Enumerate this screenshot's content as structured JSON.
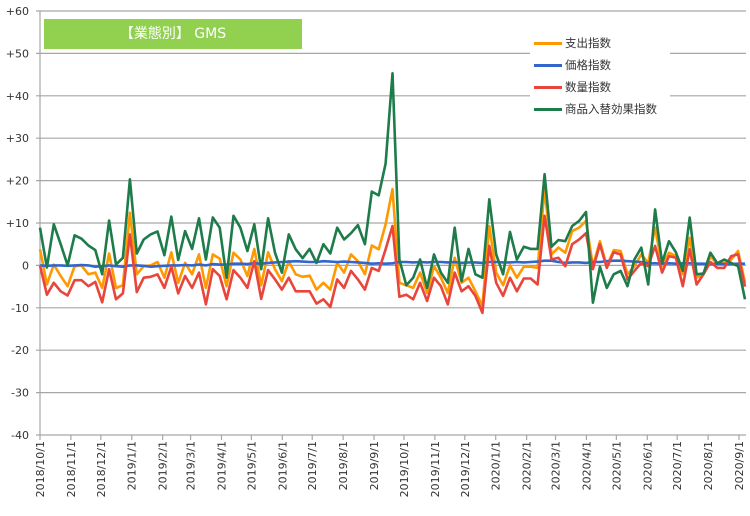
{
  "chart_data": {
    "type": "line",
    "title": "【業態別】 GMS",
    "xlabel": "",
    "ylabel": "",
    "ylim": [
      -40,
      60
    ],
    "y_ticks": [
      {
        "value": 60,
        "label": "+60"
      },
      {
        "value": 50,
        "label": "+50"
      },
      {
        "value": 40,
        "label": "+40"
      },
      {
        "value": 30,
        "label": "+30"
      },
      {
        "value": 20,
        "label": "+20"
      },
      {
        "value": 10,
        "label": "+10"
      },
      {
        "value": 0,
        "label": "0"
      },
      {
        "value": -10,
        "label": "-10"
      },
      {
        "value": -20,
        "label": "-20"
      },
      {
        "value": -30,
        "label": "-30"
      },
      {
        "value": -40,
        "label": "-40"
      }
    ],
    "x_tick_labels": [
      "2018/10/1",
      "2018/11/1",
      "2018/12/1",
      "2019/1/1",
      "2019/2/1",
      "2019/3/1",
      "2019/4/1",
      "2019/5/1",
      "2019/6/1",
      "2019/7/1",
      "2019/8/1",
      "2019/9/1",
      "2019/10/1",
      "2019/11/1",
      "2019/12/1",
      "2020/1/1",
      "2020/2/1",
      "2020/3/1",
      "2020/4/1",
      "2020/5/1",
      "2020/6/1",
      "2020/7/1",
      "2020/8/1",
      "2020/9/1"
    ],
    "x_interval": "weekly",
    "grid": true,
    "legend_position": "top-right",
    "series": [
      {
        "name": "支出指数",
        "color": "#FF9900",
        "values": [
          3.8,
          -4.5,
          0.2,
          -2.5,
          -4.9,
          -0.2,
          0,
          -2.1,
          -1.7,
          -5.3,
          2.8,
          -5.3,
          -4.7,
          12.4,
          -2.1,
          -0.2,
          0,
          0.8,
          -2.9,
          3.1,
          -4.1,
          0.6,
          -2.1,
          2.6,
          -5.3,
          2.6,
          1.6,
          -4.9,
          3,
          1.4,
          -2.5,
          3.9,
          -4.7,
          3.1,
          -0.9,
          -3.7,
          1,
          -2.1,
          -2.7,
          -2.4,
          -5.7,
          -4.1,
          -5.7,
          0.6,
          -1.7,
          2.6,
          1,
          -2.1,
          4.7,
          3.8,
          9.7,
          18,
          -4.1,
          -4.7,
          -5.3,
          -1.7,
          -6.5,
          -0.2,
          -2.9,
          -6.5,
          1.8,
          -4.1,
          -2.9,
          -6.1,
          -9.6,
          9.3,
          -1.7,
          -4.7,
          0,
          -2.9,
          -0.3,
          -0.3,
          -0.6,
          18,
          2.6,
          4.2,
          3,
          8.1,
          8.9,
          10.5,
          -0.2,
          5.7,
          -0.2,
          3.6,
          3.4,
          -2.1,
          -0.2,
          2.6,
          0.6,
          8.9,
          -0.2,
          3,
          2.2,
          -2.1,
          6.5,
          -2.9,
          -2.1,
          2.2,
          0.2,
          0.6,
          1.4,
          3.4,
          -4.1
        ]
      },
      {
        "name": "価格指数",
        "color": "#3366CC",
        "values": [
          0,
          -0.1,
          0,
          0,
          -0.1,
          0,
          0.1,
          0,
          -0.3,
          -0.2,
          0,
          -0.2,
          -0.3,
          0,
          0,
          -0.1,
          -0.3,
          -0.2,
          -0.1,
          0,
          0,
          0.1,
          0,
          0.2,
          0,
          0.3,
          0.2,
          0.2,
          0.4,
          0.4,
          0.3,
          0.5,
          0.4,
          0.6,
          0.7,
          0.8,
          0.9,
          1,
          0.9,
          0.8,
          0.8,
          1,
          0.9,
          0.8,
          0.9,
          0.8,
          0.7,
          0.6,
          0.4,
          0.5,
          0.4,
          0.5,
          0.8,
          0.8,
          0.7,
          0.8,
          0.7,
          0.8,
          0.8,
          0.7,
          0.8,
          0.6,
          0.7,
          0.7,
          0.6,
          0.8,
          0.8,
          0.7,
          0.7,
          0.8,
          0.7,
          0.8,
          0.9,
          1.1,
          1.1,
          0.8,
          0.6,
          0.7,
          0.7,
          0.6,
          0.8,
          0.8,
          1,
          1.1,
          1.1,
          1,
          0.9,
          0.8,
          0.5,
          0.5,
          0.4,
          0.5,
          0.4,
          0.5,
          0.5,
          0.4,
          0.4,
          0.3,
          0.4,
          0.3,
          0.3,
          0.4,
          0.4
        ]
      },
      {
        "name": "数量指数",
        "color": "#E8453C",
        "values": [
          0,
          -6.9,
          -4.1,
          -6.1,
          -7.1,
          -3.5,
          -3.5,
          -4.9,
          -3.9,
          -8.7,
          -0.9,
          -8,
          -6.6,
          7.3,
          -6.3,
          -2.9,
          -2.7,
          -2.1,
          -5.3,
          -0.3,
          -6.6,
          -2.5,
          -5.3,
          -1.7,
          -9.2,
          -0.9,
          -2.5,
          -8,
          -1.1,
          -2.9,
          -5.3,
          1,
          -7.9,
          -1.1,
          -3.3,
          -5.7,
          -2.9,
          -6.1,
          -6.1,
          -6.1,
          -9,
          -8,
          -9.8,
          -3.3,
          -5.3,
          -1.3,
          -3.3,
          -5.7,
          -0.6,
          -1.3,
          3.8,
          9.3,
          -7.4,
          -6.9,
          -8,
          -4.1,
          -8.4,
          -2.9,
          -4.9,
          -9.2,
          -1.7,
          -6.1,
          -4.9,
          -7.2,
          -11.2,
          4.6,
          -4.1,
          -7.2,
          -2.9,
          -6.1,
          -3.1,
          -3.1,
          -4.5,
          11.7,
          1.4,
          1.8,
          -0.2,
          5,
          6.1,
          7.6,
          -0.9,
          5,
          -0.6,
          3.1,
          2.6,
          -3.3,
          -1.3,
          0.6,
          -0.2,
          4.6,
          -1.7,
          2.2,
          1.8,
          -4.9,
          3.8,
          -4.5,
          -2.1,
          0.8,
          -0.6,
          -0.6,
          2.2,
          2.6,
          -5
        ]
      },
      {
        "name": "商品入替効果指数",
        "color": "#1E7B4A",
        "values": [
          8.9,
          -0.5,
          9.7,
          5,
          0,
          7.1,
          6.3,
          4.7,
          3.6,
          -2.1,
          10.6,
          0.2,
          1.8,
          20.3,
          2.8,
          6.1,
          7.3,
          8,
          2.4,
          11.5,
          1.3,
          8.1,
          3.9,
          11.1,
          1.4,
          11.3,
          8.9,
          -2.9,
          11.7,
          8.9,
          3.4,
          9.7,
          -0.9,
          11.1,
          3,
          -1.7,
          7.3,
          3.8,
          1.7,
          3.9,
          0.6,
          5,
          2.8,
          8.9,
          6.1,
          7.6,
          9.5,
          5,
          17.4,
          16.5,
          24,
          45.3,
          1.4,
          -4.7,
          -2.9,
          1.4,
          -5.3,
          2.6,
          -1.7,
          -4.1,
          8.9,
          -3.7,
          3.9,
          -2.1,
          -2.9,
          15.6,
          2.6,
          -2.1,
          7.9,
          1.4,
          4.4,
          3.9,
          3.9,
          21.5,
          4.4,
          6,
          5.7,
          9.3,
          10.5,
          12.6,
          -8.8,
          -0.3,
          -5.3,
          -2.1,
          -1.3,
          -4.9,
          1.4,
          4.2,
          -4.5,
          13.2,
          0.6,
          5.7,
          3.1,
          -1.3,
          11.3,
          -2.1,
          -1.9,
          3,
          0.5,
          1.4,
          0.6,
          -0.2,
          -8
        ]
      }
    ]
  }
}
